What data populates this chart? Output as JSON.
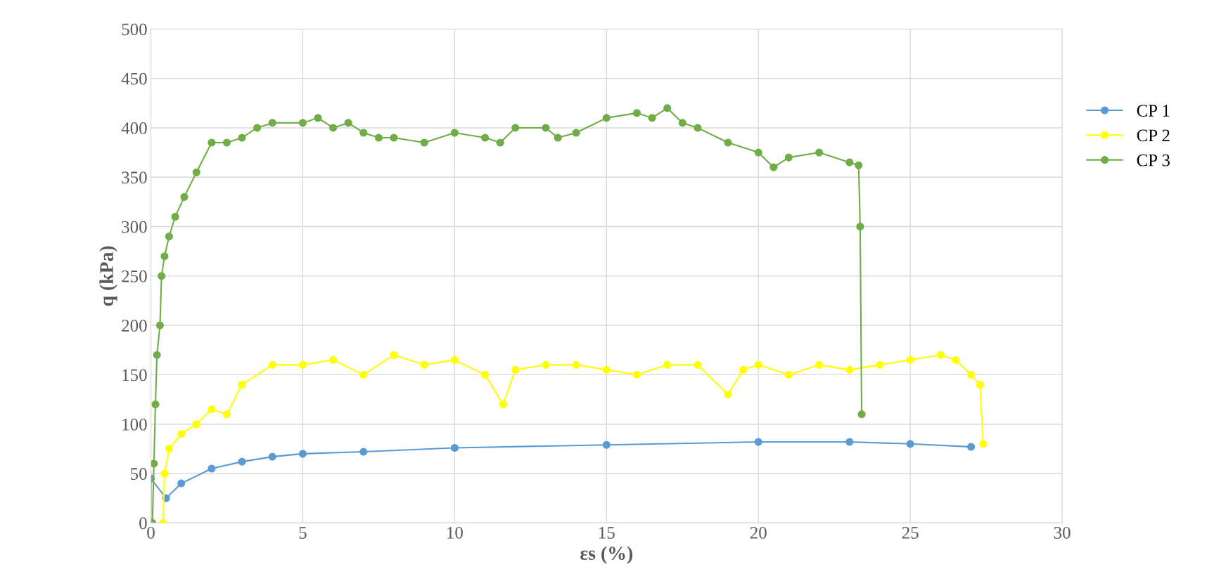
{
  "chart_data": {
    "type": "line",
    "xlabel": "εs (%)",
    "ylabel": "q (kPa)",
    "xlim": [
      0,
      30
    ],
    "ylim": [
      0,
      500
    ],
    "xticks": [
      0,
      5,
      10,
      15,
      20,
      25,
      30
    ],
    "yticks": [
      0,
      50,
      100,
      150,
      200,
      250,
      300,
      350,
      400,
      450,
      500
    ],
    "grid": true,
    "legend": "right",
    "marker": "circle",
    "line_style": "solid",
    "series": [
      {
        "name": "CP 1",
        "color": "#5b9bd5",
        "x": [
          0,
          0,
          0.5,
          1,
          2,
          3,
          4,
          5,
          7,
          10,
          15,
          20,
          23,
          25,
          27
        ],
        "values": [
          0,
          45,
          25,
          40,
          55,
          62,
          67,
          70,
          72,
          76,
          79,
          82,
          82,
          80,
          77
        ]
      },
      {
        "name": "CP 2",
        "color": "#ffff00",
        "x": [
          0.4,
          0.45,
          0.6,
          1,
          1.5,
          2,
          2.5,
          3,
          4,
          5,
          6,
          7,
          8,
          9,
          10,
          11,
          11.6,
          12,
          13,
          14,
          15,
          16,
          17,
          18,
          19,
          19.5,
          20,
          21,
          22,
          23,
          24,
          25,
          26,
          26.5,
          27,
          27.3,
          27.4
        ],
        "values": [
          0,
          50,
          75,
          90,
          100,
          115,
          110,
          140,
          160,
          160,
          165,
          150,
          170,
          160,
          165,
          150,
          120,
          155,
          160,
          160,
          155,
          150,
          160,
          160,
          130,
          155,
          160,
          150,
          160,
          155,
          160,
          165,
          170,
          165,
          150,
          140,
          80
        ]
      },
      {
        "name": "CP 3",
        "color": "#70ad47",
        "x": [
          0.05,
          0.1,
          0.15,
          0.2,
          0.3,
          0.35,
          0.45,
          0.6,
          0.8,
          1.1,
          1.5,
          2,
          2.5,
          3,
          3.5,
          4,
          5,
          5.5,
          6,
          6.5,
          7,
          7.5,
          8,
          9,
          10,
          11,
          11.5,
          12,
          13,
          13.4,
          14,
          15,
          16,
          16.5,
          17,
          17.5,
          18,
          19,
          20,
          20.5,
          21,
          22,
          23,
          23.3,
          23.35,
          23.4
        ],
        "values": [
          0,
          60,
          120,
          170,
          200,
          250,
          270,
          290,
          310,
          330,
          355,
          385,
          385,
          390,
          400,
          405,
          405,
          410,
          400,
          405,
          395,
          390,
          390,
          385,
          395,
          390,
          385,
          400,
          400,
          390,
          395,
          410,
          415,
          410,
          420,
          405,
          400,
          385,
          375,
          360,
          370,
          375,
          365,
          362,
          300,
          110
        ]
      }
    ]
  }
}
